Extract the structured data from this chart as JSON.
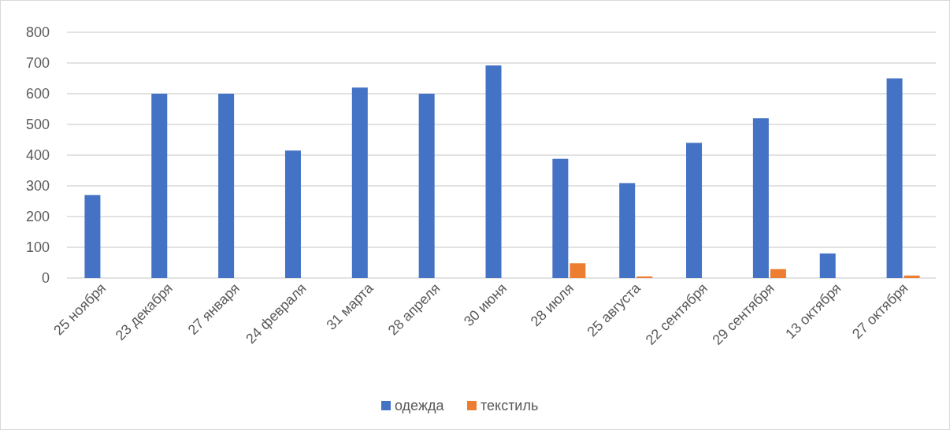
{
  "chart_data": {
    "type": "bar",
    "categories": [
      "25 ноября",
      "23 декабря",
      "27 января",
      "24 февраля",
      "31 марта",
      "28 апреля",
      "30 июня",
      "28 июля",
      "25 августа",
      "22 сентября",
      "29 сентября",
      "13 октября",
      "27 октября"
    ],
    "series": [
      {
        "name": "одежда",
        "color": "#4472c4",
        "values": [
          270,
          600,
          600,
          415,
          620,
          600,
          692,
          388,
          309,
          440,
          520,
          80,
          650
        ]
      },
      {
        "name": "текстиль",
        "color": "#ed7d31",
        "values": [
          0,
          0,
          0,
          0,
          0,
          0,
          0,
          48,
          5,
          0,
          29,
          0,
          8
        ]
      }
    ],
    "ylim": [
      0,
      800
    ],
    "yticks": [
      0,
      100,
      200,
      300,
      400,
      500,
      600,
      700,
      800
    ],
    "grid": "y",
    "legend": "bottom"
  }
}
